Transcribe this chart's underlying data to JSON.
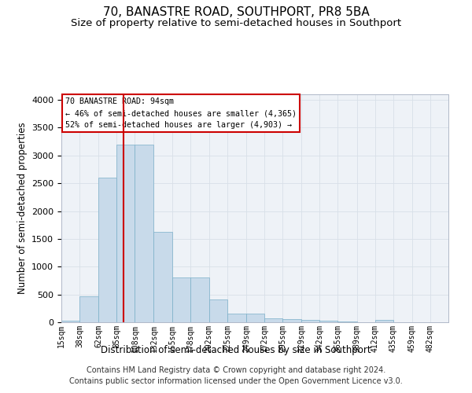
{
  "title1": "70, BANASTRE ROAD, SOUTHPORT, PR8 5BA",
  "title2": "Size of property relative to semi-detached houses in Southport",
  "xlabel": "Distribution of semi-detached houses by size in Southport",
  "ylabel": "Number of semi-detached properties",
  "footer1": "Contains HM Land Registry data © Crown copyright and database right 2024.",
  "footer2": "Contains public sector information licensed under the Open Government Licence v3.0.",
  "annotation_title": "70 BANASTRE ROAD: 94sqm",
  "annotation_line2": "← 46% of semi-detached houses are smaller (4,365)",
  "annotation_line3": "52% of semi-detached houses are larger (4,903) →",
  "property_size": 94,
  "bar_edges": [
    15,
    38,
    62,
    85,
    108,
    132,
    155,
    178,
    202,
    225,
    249,
    272,
    295,
    319,
    342,
    365,
    389,
    412,
    435,
    459,
    482
  ],
  "bar_heights": [
    25,
    460,
    2600,
    3200,
    3200,
    1620,
    800,
    800,
    410,
    160,
    155,
    75,
    60,
    40,
    30,
    20,
    0,
    40,
    0,
    0,
    0
  ],
  "bar_color": "#c8daea",
  "bar_edge_color": "#7aafc8",
  "vline_color": "#cc0000",
  "vline_x": 94,
  "ylim": [
    0,
    4100
  ],
  "yticks": [
    0,
    500,
    1000,
    1500,
    2000,
    2500,
    3000,
    3500,
    4000
  ],
  "grid_color": "#d8e0e8",
  "bg_color": "#ffffff",
  "plot_bg_color": "#eef2f7",
  "annotation_box_color": "#ffffff",
  "annotation_box_edge": "#cc0000",
  "title1_fontsize": 11,
  "title2_fontsize": 9.5,
  "axis_label_fontsize": 8.5,
  "tick_fontsize": 7,
  "footer_fontsize": 7
}
